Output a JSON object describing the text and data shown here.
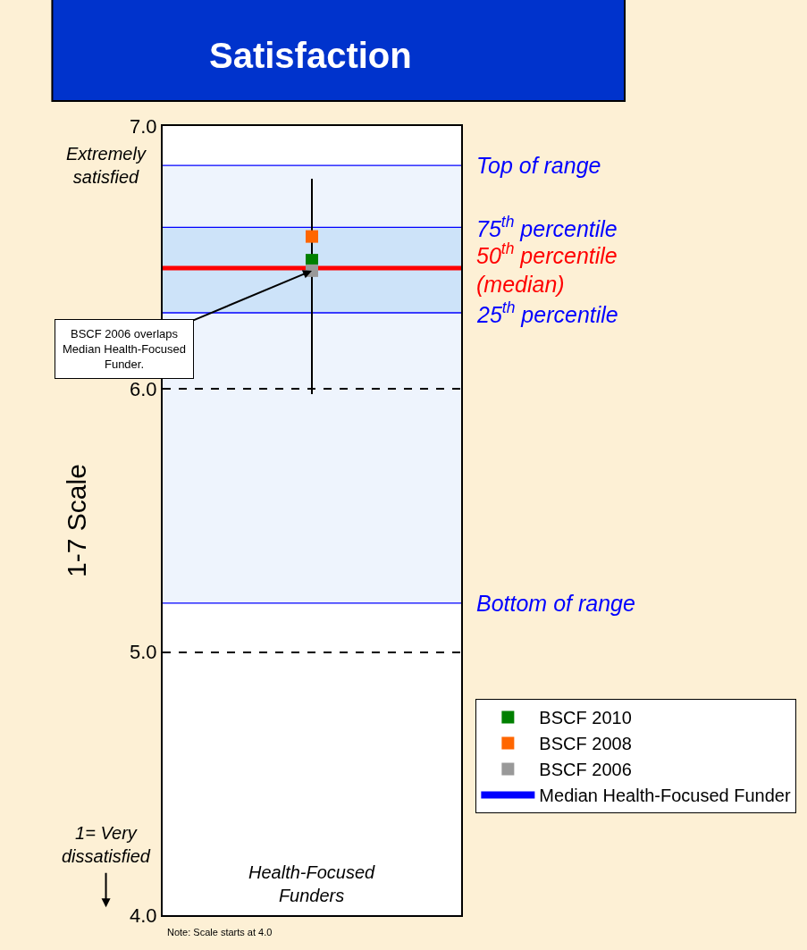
{
  "chart_data": {
    "type": "scatter",
    "title": "Satisfaction",
    "ylabel": "1-7 Scale",
    "categories": [
      null
    ],
    "series": [
      {
        "type": "bar",
        "color": "#000000",
        "base": [
          5.98
        ],
        "values": [
          0.82
        ]
      },
      {
        "name": "BSCF 2010",
        "color": "#008000",
        "values": [
          6.49
        ]
      },
      {
        "name": "BSCF 2008",
        "color": "#ff6600",
        "values": [
          6.58
        ]
      },
      {
        "name": "BSCF 2006",
        "color": "#999999",
        "values": [
          6.45
        ]
      },
      {
        "name": "Median Health-Focused Funder",
        "color": "#0000ff",
        "type": "line",
        "values": [
          null
        ]
      }
    ],
    "ylim": [
      4.0,
      7.0
    ],
    "yticks": [
      {
        "value": 4,
        "label": "4.0"
      },
      {
        "value": 5,
        "label": "5.0"
      },
      {
        "value": 6,
        "label": "6.0"
      },
      {
        "value": 7,
        "label": "7.0"
      }
    ],
    "grid": "y",
    "legend": "bottom right",
    "marker": "square",
    "bands": [
      {
        "axis": "y",
        "from": 5.186,
        "to": 6.85,
        "color": "#eef4fd"
      },
      {
        "axis": "y",
        "from": 6.29,
        "to": 6.615,
        "color": "#cde3f9"
      }
    ],
    "ref_lines": [
      {
        "axis": "y",
        "value": 6.85,
        "label": "Top of range",
        "color": "#0000ff"
      },
      {
        "axis": "y",
        "value": 6.615,
        "label": "75$^{th}$ percentile",
        "color": "#0000ff"
      },
      {
        "axis": "y",
        "value": 6.46,
        "label": "50$^{th}$ percentile\n(median)",
        "color": "#ff0000"
      },
      {
        "axis": "y",
        "value": 6.29,
        "label": "25$^{th}$ percentile",
        "color": "#0000ff"
      },
      {
        "axis": "y",
        "value": 5.186,
        "label": "Bottom of range",
        "color": "#0000ff"
      }
    ],
    "annotations": [
      "Extremely\nsatisfied",
      "1= Very\ndissatisfied",
      "Health-Focused\nFunders",
      "Note: Scale starts at 4.0",
      "BSCF 2006 overlaps\nMedian Health-Focused\nFunder."
    ]
  }
}
